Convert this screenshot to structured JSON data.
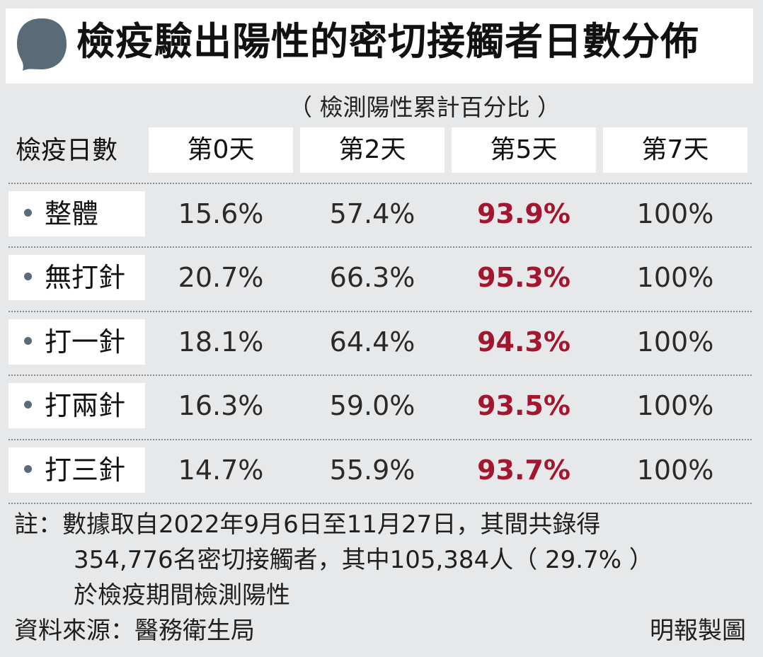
{
  "title": "檢疫驗出陽性的密切接觸者日數分佈",
  "colors": {
    "bubble": "#5a6b78",
    "highlight": "#a3162f",
    "background": "#e7e8e9"
  },
  "chart_data": {
    "type": "table",
    "title": "檢疫驗出陽性的密切接觸者日數分佈",
    "subtitle": "（ 檢測陽性累計百分比 ）",
    "row_header_label": "檢疫日數",
    "columns": [
      "第0天",
      "第2天",
      "第5天",
      "第7天"
    ],
    "rows": [
      {
        "label": "整體",
        "values": [
          "15.6%",
          "57.4%",
          "93.9%",
          "100%"
        ]
      },
      {
        "label": "無打針",
        "values": [
          "20.7%",
          "66.3%",
          "95.3%",
          "100%"
        ]
      },
      {
        "label": "打一針",
        "values": [
          "18.1%",
          "64.4%",
          "94.3%",
          "100%"
        ]
      },
      {
        "label": "打兩針",
        "values": [
          "16.3%",
          "59.0%",
          "93.5%",
          "100%"
        ]
      },
      {
        "label": "打三針",
        "values": [
          "14.7%",
          "55.9%",
          "93.7%",
          "100%"
        ]
      }
    ],
    "highlighted_column": "第5天"
  },
  "note": {
    "line1": "註：數據取自2022年9月6日至11月27日，其間共錄得",
    "line2": "354,776名密切接觸者，其中105,384人（ 29.7% ）",
    "line3": "於檢疫期間檢測陽性"
  },
  "source": "資料來源：醫務衛生局",
  "credit": "明報製圖"
}
